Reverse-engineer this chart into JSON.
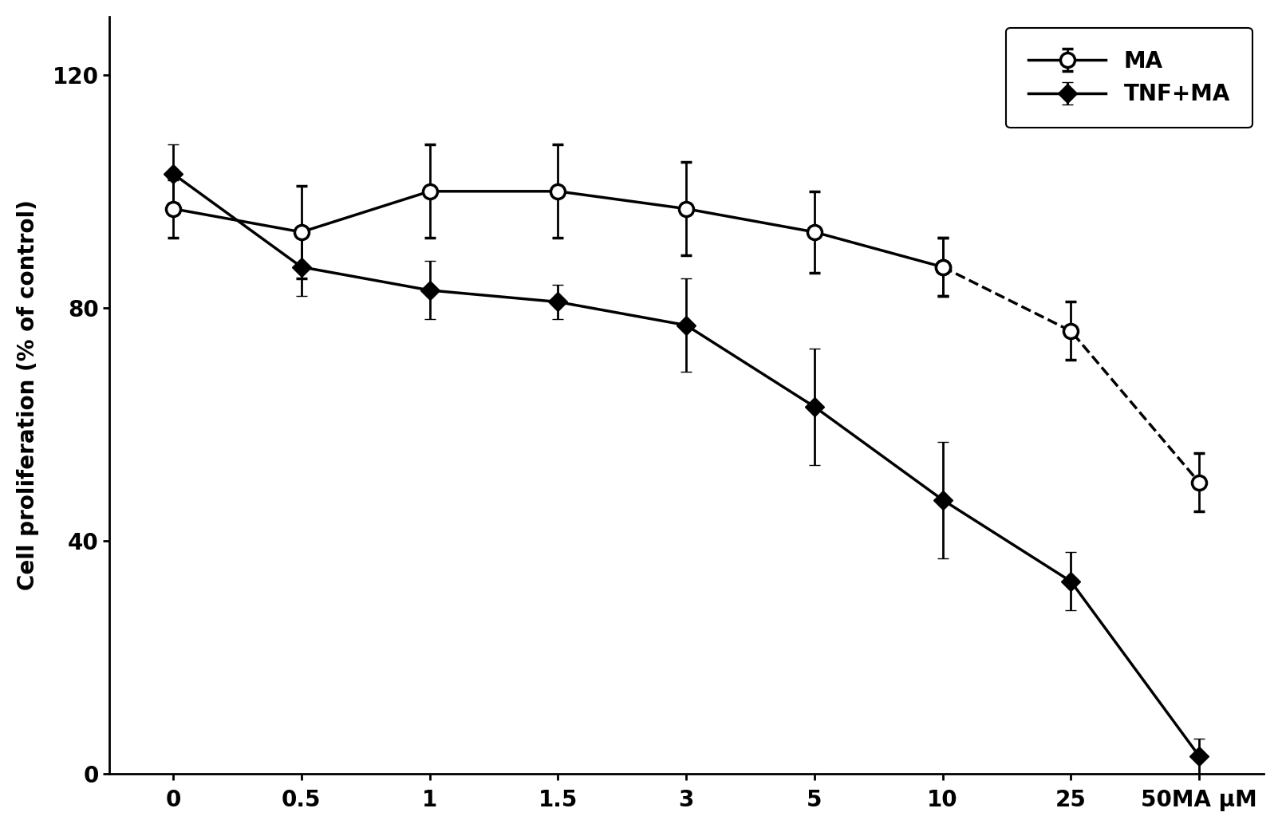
{
  "x_positions": [
    0,
    0.5,
    1,
    1.5,
    3,
    5,
    10,
    25,
    50
  ],
  "x_labels": [
    "0",
    "0.5",
    "1",
    "1.5",
    "3",
    "5",
    "10",
    "25",
    "50"
  ],
  "x_label_extra": "MA μM",
  "ma_y": [
    97,
    93,
    100,
    100,
    97,
    93,
    87,
    76,
    50
  ],
  "ma_yerr": [
    5,
    8,
    8,
    8,
    8,
    7,
    5,
    5,
    5
  ],
  "tnfma_y": [
    103,
    87,
    83,
    81,
    77,
    63,
    47,
    33,
    3
  ],
  "tnfma_yerr": [
    5,
    5,
    5,
    3,
    8,
    10,
    10,
    5,
    3
  ],
  "ylabel": "Cell proliferation (% of control)",
  "ylim": [
    0,
    130
  ],
  "yticks": [
    0,
    40,
    80,
    120
  ],
  "ma_label": "MA",
  "tnfma_label": "TNF+MA",
  "line_color": "#000000",
  "bg_color": "#ffffff",
  "plot_bg": "#ffffff"
}
